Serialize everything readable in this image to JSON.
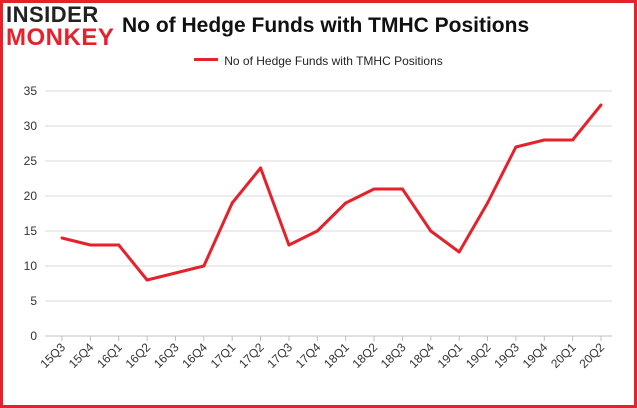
{
  "logo": {
    "line1": "INSIDER",
    "line2": "MONKEY"
  },
  "chart_data": {
    "type": "line",
    "title": "No of Hedge Funds with TMHC Positions",
    "xlabel": "",
    "ylabel": "",
    "categories": [
      "15Q3",
      "15Q4",
      "16Q1",
      "16Q2",
      "16Q3",
      "16Q4",
      "17Q1",
      "17Q2",
      "17Q3",
      "17Q4",
      "18Q1",
      "18Q2",
      "18Q3",
      "18Q4",
      "19Q1",
      "19Q2",
      "19Q3",
      "19Q4",
      "20Q1",
      "20Q2"
    ],
    "series": [
      {
        "name": "No of Hedge Funds with TMHC Positions",
        "color": "#e4222c",
        "values": [
          14,
          13,
          13,
          8,
          9,
          10,
          19,
          24,
          13,
          15,
          19,
          21,
          21,
          15,
          12,
          19,
          27,
          28,
          28,
          33
        ]
      }
    ],
    "ylim": [
      0,
      35
    ],
    "yticks": [
      0,
      5,
      10,
      15,
      20,
      25,
      30,
      35
    ],
    "grid": true,
    "legend": "top-center"
  },
  "colors": {
    "accent": "#e4222c",
    "frame": "#e4222c"
  }
}
